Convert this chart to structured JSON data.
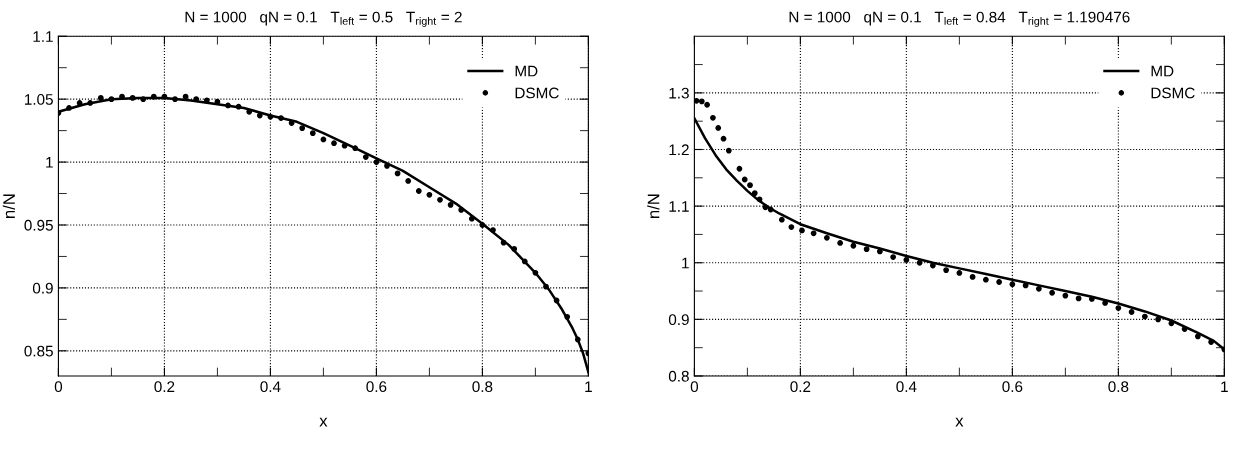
{
  "chart_data": [
    {
      "type": "line",
      "title": "N = 1000   qN = 0.1   T$_{left}$ = 0.5   T$_{right}$ = 2",
      "xlabel": "x",
      "ylabel": "n/N",
      "xlim": [
        0,
        1
      ],
      "ylim": [
        0.83,
        1.1
      ],
      "xticks": [
        0,
        {
          "value": 0.1,
          "label": null
        },
        {
          "value": 0.2,
          "label": "0.2"
        },
        {
          "value": 0.3,
          "label": null
        },
        {
          "value": 0.4,
          "label": "0.4"
        },
        {
          "value": 0.5,
          "label": null
        },
        {
          "value": 0.6,
          "label": "0.6"
        },
        {
          "value": 0.7,
          "label": null
        },
        {
          "value": 0.8,
          "label": "0.8"
        },
        {
          "value": 0.9,
          "label": null
        },
        1
      ],
      "yticks": [
        {
          "value": 0.85,
          "label": "0.85"
        },
        {
          "value": 0.875,
          "label": null
        },
        {
          "value": 0.9,
          "label": "0.9"
        },
        {
          "value": 0.925,
          "label": null
        },
        {
          "value": 0.95,
          "label": "0.95"
        },
        {
          "value": 0.975,
          "label": null
        },
        1,
        {
          "value": 1.025,
          "label": null
        },
        {
          "value": 1.05,
          "label": "1.05"
        },
        {
          "value": 1.075,
          "label": null
        },
        {
          "value": 1.1,
          "label": "1.1"
        }
      ],
      "grid": true,
      "legend": "top right",
      "series": [
        {
          "name": "MD",
          "color": "#000000",
          "line_style": "solid",
          "marker": "none",
          "x": [
            0,
            0.05,
            0.1,
            0.15,
            0.2,
            0.25,
            0.3,
            0.35,
            0.4,
            0.45,
            0.5,
            0.55,
            0.6,
            0.65,
            0.7,
            0.75,
            0.8,
            0.85,
            0.9,
            0.925,
            0.95,
            0.97,
            0.98,
            0.99,
            1.0
          ],
          "values": [
            1.04,
            1.046,
            1.05,
            1.051,
            1.051,
            1.049,
            1.046,
            1.043,
            1.037,
            1.032,
            1.023,
            1.013,
            1.003,
            0.993,
            0.98,
            0.967,
            0.951,
            0.934,
            0.912,
            0.899,
            0.883,
            0.868,
            0.859,
            0.848,
            0.833
          ]
        },
        {
          "name": "DSMC",
          "type": "scatter",
          "color": "#000000",
          "marker": "circle",
          "x": [
            0,
            0.02,
            0.04,
            0.06,
            0.08,
            0.1,
            0.12,
            0.14,
            0.16,
            0.18,
            0.2,
            0.22,
            0.24,
            0.26,
            0.28,
            0.3,
            0.32,
            0.34,
            0.36,
            0.38,
            0.4,
            0.42,
            0.44,
            0.46,
            0.48,
            0.5,
            0.52,
            0.54,
            0.56,
            0.58,
            0.6,
            0.62,
            0.64,
            0.66,
            0.68,
            0.7,
            0.72,
            0.74,
            0.76,
            0.78,
            0.8,
            0.82,
            0.84,
            0.86,
            0.88,
            0.9,
            0.92,
            0.94,
            0.96,
            0.98,
            1.0
          ],
          "values": [
            1.039,
            1.043,
            1.047,
            1.047,
            1.051,
            1.05,
            1.052,
            1.051,
            1.05,
            1.052,
            1.052,
            1.05,
            1.052,
            1.05,
            1.049,
            1.048,
            1.045,
            1.044,
            1.04,
            1.037,
            1.036,
            1.035,
            1.031,
            1.027,
            1.023,
            1.018,
            1.015,
            1.013,
            1.011,
            1.004,
            1.0,
            0.997,
            0.991,
            0.985,
            0.977,
            0.974,
            0.97,
            0.966,
            0.962,
            0.955,
            0.95,
            0.946,
            0.936,
            0.931,
            0.921,
            0.912,
            0.901,
            0.89,
            0.877,
            0.859,
            0.848
          ]
        }
      ]
    },
    {
      "type": "line",
      "title": "N = 1000   qN = 0.1   T$_{left}$ = 0.84   T$_{right}$ = 1.190476",
      "xlabel": "x",
      "ylabel": "n/N",
      "xlim": [
        0,
        1
      ],
      "ylim": [
        0.8,
        1.4
      ],
      "xticks": [
        0,
        {
          "value": 0.1,
          "label": null
        },
        {
          "value": 0.2,
          "label": "0.2"
        },
        {
          "value": 0.3,
          "label": null
        },
        {
          "value": 0.4,
          "label": "0.4"
        },
        {
          "value": 0.5,
          "label": null
        },
        {
          "value": 0.6,
          "label": "0.6"
        },
        {
          "value": 0.7,
          "label": null
        },
        {
          "value": 0.8,
          "label": "0.8"
        },
        {
          "value": 0.9,
          "label": null
        },
        1
      ],
      "yticks": [
        {
          "value": 0.8,
          "label": "0.8"
        },
        {
          "value": 0.85,
          "label": null
        },
        {
          "value": 0.9,
          "label": "0.9"
        },
        {
          "value": 0.95,
          "label": null
        },
        1,
        {
          "value": 1.05,
          "label": null
        },
        {
          "value": 1.1,
          "label": "1.1"
        },
        {
          "value": 1.15,
          "label": null
        },
        {
          "value": 1.2,
          "label": "1.2"
        },
        {
          "value": 1.25,
          "label": null
        },
        {
          "value": 1.3,
          "label": "1.3"
        },
        {
          "value": 1.35,
          "label": null
        }
      ],
      "grid": true,
      "legend": "top right",
      "series": [
        {
          "name": "MD",
          "color": "#000000",
          "line_style": "solid",
          "marker": "none",
          "x": [
            0,
            0.02,
            0.04,
            0.06,
            0.08,
            0.1,
            0.12,
            0.14,
            0.16,
            0.2,
            0.25,
            0.3,
            0.35,
            0.4,
            0.45,
            0.5,
            0.55,
            0.6,
            0.65,
            0.7,
            0.75,
            0.8,
            0.85,
            0.9,
            0.95,
            0.98,
            1.0
          ],
          "values": [
            1.255,
            1.22,
            1.19,
            1.165,
            1.145,
            1.127,
            1.111,
            1.098,
            1.087,
            1.068,
            1.052,
            1.037,
            1.025,
            1.012,
            1.0,
            0.99,
            0.98,
            0.97,
            0.96,
            0.95,
            0.94,
            0.928,
            0.914,
            0.898,
            0.876,
            0.862,
            0.847
          ]
        },
        {
          "name": "DSMC",
          "type": "scatter",
          "color": "#000000",
          "marker": "circle",
          "x": [
            0.004,
            0.014,
            0.024,
            0.035,
            0.045,
            0.055,
            0.065,
            0.085,
            0.095,
            0.105,
            0.114,
            0.123,
            0.134,
            0.144,
            0.165,
            0.183,
            0.203,
            0.225,
            0.25,
            0.275,
            0.3,
            0.325,
            0.35,
            0.375,
            0.4,
            0.425,
            0.45,
            0.475,
            0.5,
            0.525,
            0.55,
            0.575,
            0.6,
            0.625,
            0.65,
            0.675,
            0.7,
            0.725,
            0.75,
            0.775,
            0.8,
            0.825,
            0.85,
            0.875,
            0.9,
            0.925,
            0.95,
            0.975,
            1.0
          ],
          "values": [
            1.286,
            1.285,
            1.279,
            1.256,
            1.238,
            1.219,
            1.198,
            1.166,
            1.147,
            1.137,
            1.123,
            1.112,
            1.098,
            1.094,
            1.076,
            1.063,
            1.057,
            1.052,
            1.044,
            1.035,
            1.03,
            1.024,
            1.02,
            1.01,
            1.005,
            1.0,
            0.995,
            0.987,
            0.982,
            0.975,
            0.97,
            0.966,
            0.962,
            0.96,
            0.954,
            0.947,
            0.942,
            0.937,
            0.936,
            0.929,
            0.92,
            0.913,
            0.905,
            0.9,
            0.893,
            0.883,
            0.87,
            0.86,
            0.847
          ]
        }
      ]
    }
  ]
}
